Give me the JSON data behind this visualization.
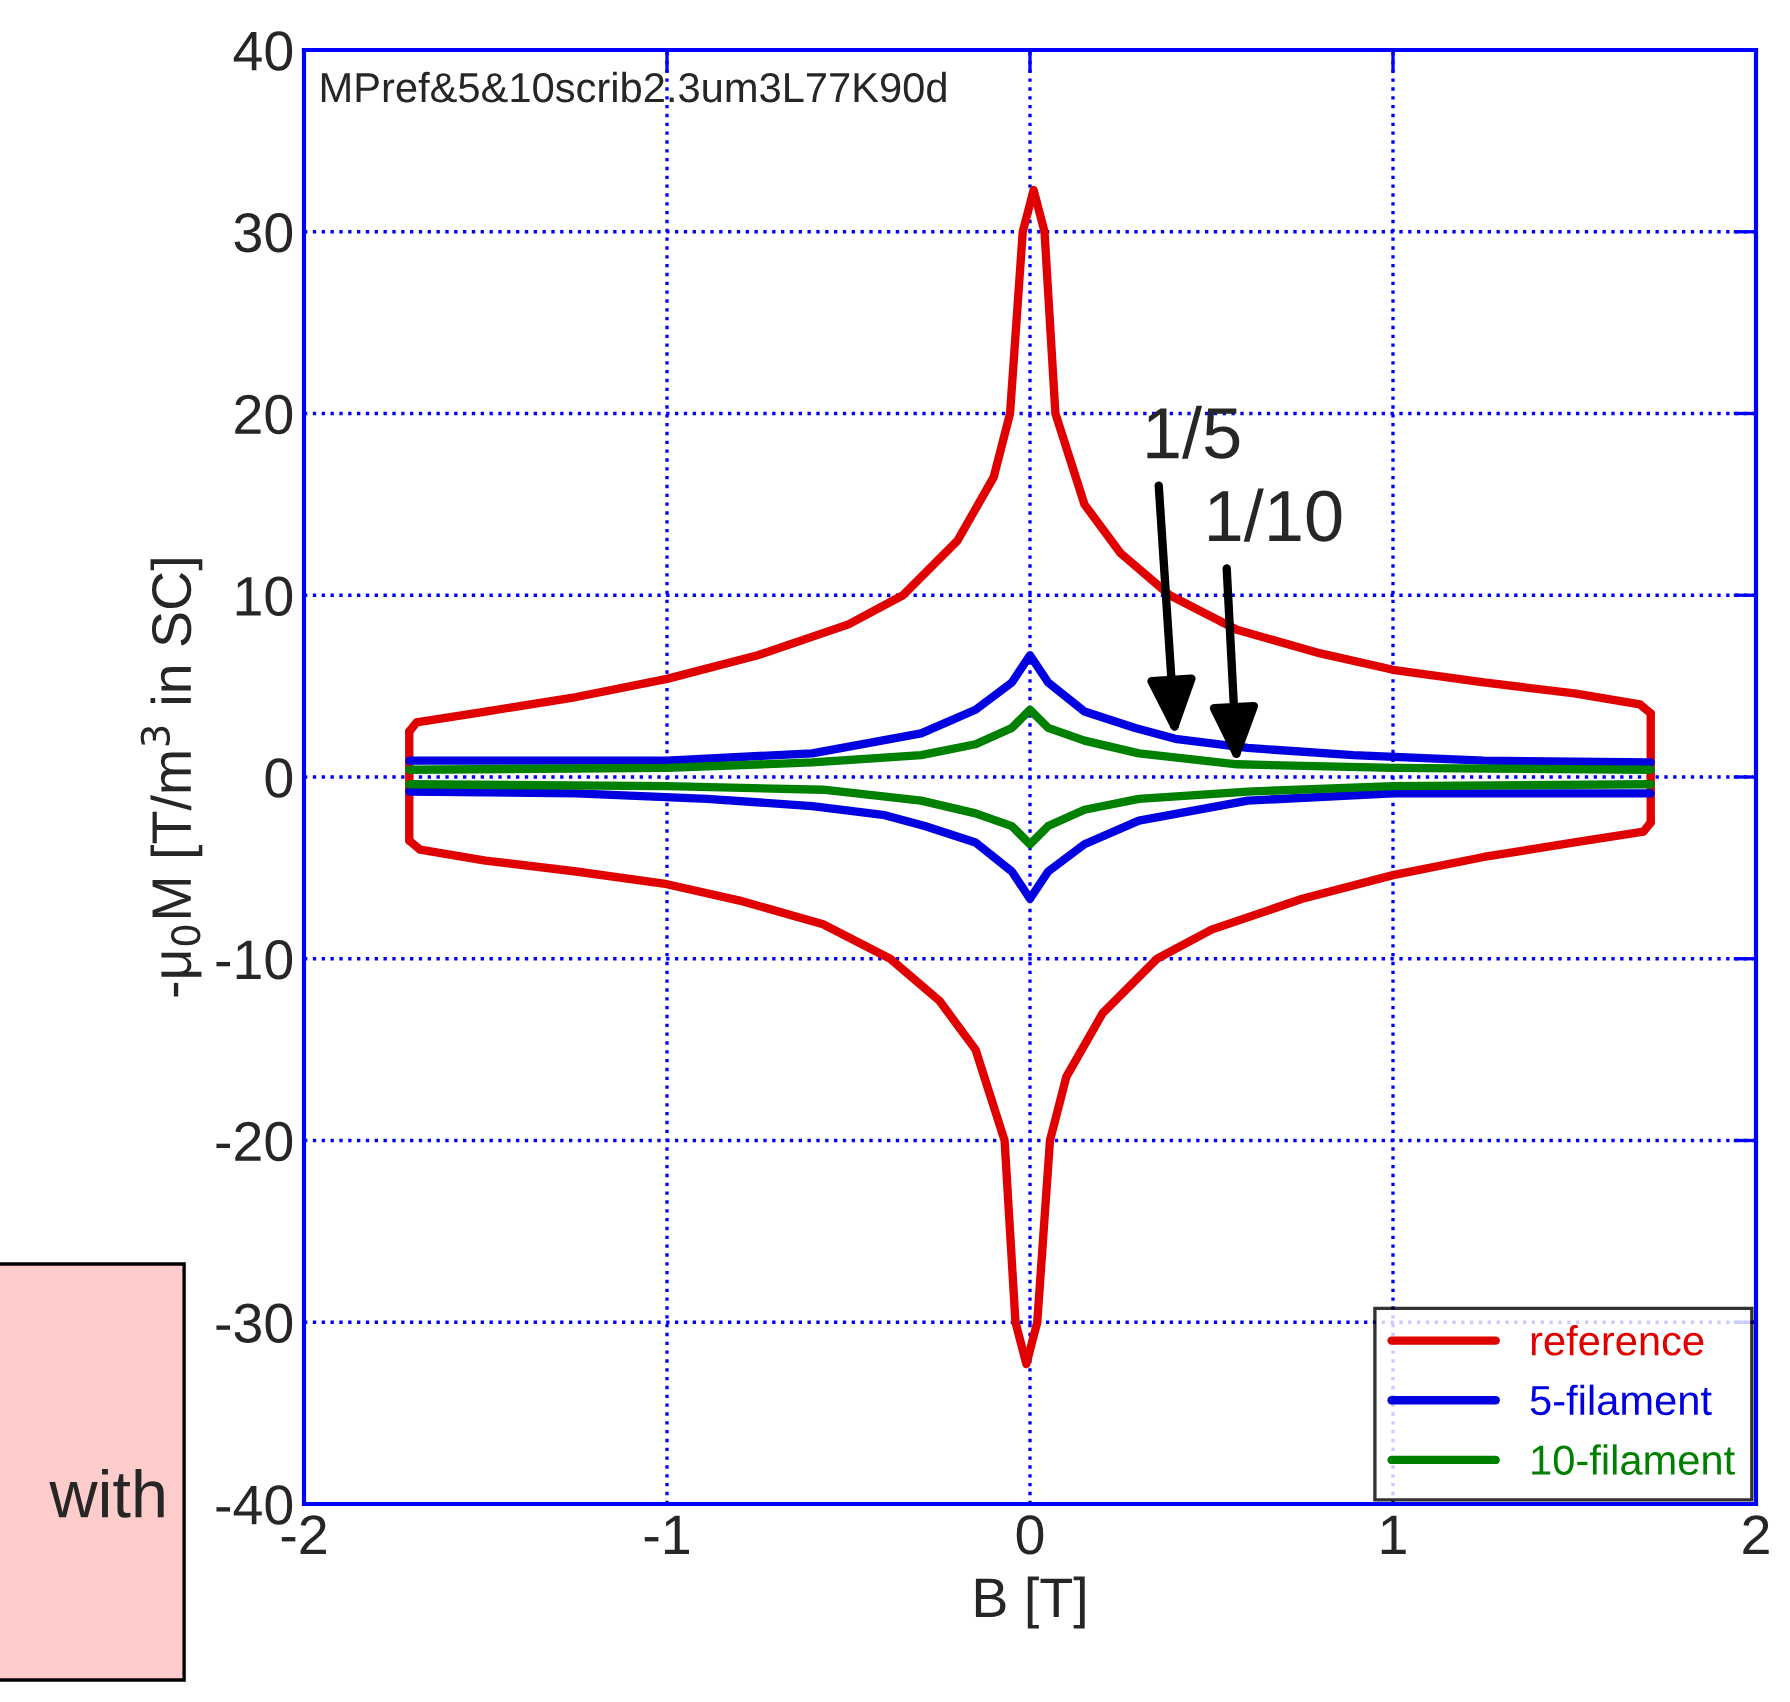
{
  "chart_data": {
    "type": "line",
    "title": "MPref&5&10scrib2.3um3L77K90d",
    "xlabel": "B [T]",
    "ylabel": "-μ$_{0}$M [T/m$^{3}$ in SC]",
    "xlim": [
      -2,
      2
    ],
    "xticks": [
      -2,
      -1,
      0,
      1,
      2
    ],
    "ylim": [
      -40,
      40
    ],
    "yticks": [
      -40,
      -30,
      -20,
      -10,
      0,
      10,
      20,
      30,
      40
    ],
    "grid": true,
    "legend": "bottom right",
    "series": [
      {
        "name": "reference",
        "color": "#e00000",
        "x": [
          -1.71,
          -1.69,
          -1.5,
          -1.25,
          -1,
          -0.75,
          -0.5,
          -0.35,
          -0.2,
          -0.1,
          -0.055,
          -0.02,
          0.01,
          0.04,
          0.07,
          0.15,
          0.25,
          0.385,
          0.57,
          0.8,
          1,
          1.25,
          1.5,
          1.68,
          1.71
        ],
        "values": [
          2.5,
          3.0,
          3.6,
          4.4,
          5.4,
          6.7,
          8.4,
          10,
          13,
          16.5,
          20,
          30,
          32.3,
          30,
          20,
          15,
          12.3,
          10,
          8.1,
          6.8,
          5.9,
          5.2,
          4.6,
          4.0,
          3.5
        ]
      },
      {
        "color": "#e00000",
        "x": [
          -1.71,
          -1.68,
          -1.5,
          -1.25,
          -1,
          -0.8,
          -0.57,
          -0.385,
          -0.25,
          -0.15,
          -0.07,
          -0.04,
          -0.01,
          0.02,
          0.055,
          0.1,
          0.2,
          0.35,
          0.5,
          0.75,
          1,
          1.25,
          1.5,
          1.69,
          1.71
        ],
        "values": [
          -3.5,
          -4.0,
          -4.6,
          -5.2,
          -5.9,
          -6.8,
          -8.1,
          -10,
          -12.3,
          -15,
          -20,
          -30,
          -32.3,
          -30,
          -20,
          -16.5,
          -13,
          -10,
          -8.4,
          -6.7,
          -5.4,
          -4.4,
          -3.6,
          -3.0,
          -2.5
        ]
      },
      {
        "color": "#e00000",
        "x": [
          -1.71,
          -1.71
        ],
        "values": [
          2.5,
          -3.5
        ]
      },
      {
        "color": "#e00000",
        "x": [
          1.71,
          1.71
        ],
        "values": [
          3.5,
          -2.5
        ]
      },
      {
        "name": "5-filament",
        "color": "#0000e0",
        "x": [
          -1.71,
          -1,
          -0.6,
          -0.3,
          -0.15,
          -0.05,
          0,
          0.05,
          0.15,
          0.29,
          0.4,
          0.6,
          0.89,
          1.25,
          1.71
        ],
        "values": [
          0.9,
          0.9,
          1.3,
          2.4,
          3.7,
          5.2,
          6.7,
          5.2,
          3.6,
          2.7,
          2.1,
          1.6,
          1.2,
          0.9,
          0.8
        ]
      },
      {
        "color": "#0000e0",
        "x": [
          -1.71,
          -1.25,
          -0.89,
          -0.6,
          -0.4,
          -0.29,
          -0.15,
          -0.05,
          0,
          0.05,
          0.15,
          0.3,
          0.6,
          1,
          1.71
        ],
        "values": [
          -0.8,
          -0.9,
          -1.2,
          -1.6,
          -2.1,
          -2.7,
          -3.6,
          -5.2,
          -6.7,
          -5.2,
          -3.7,
          -2.4,
          -1.3,
          -0.9,
          -0.9
        ]
      },
      {
        "name": "10-filament",
        "color": "#008000",
        "x": [
          -1.71,
          -1,
          -0.6,
          -0.3,
          -0.15,
          -0.05,
          0,
          0.05,
          0.15,
          0.3,
          0.57,
          1,
          1.71
        ],
        "values": [
          0.4,
          0.5,
          0.8,
          1.2,
          1.8,
          2.7,
          3.7,
          2.7,
          2.0,
          1.3,
          0.7,
          0.5,
          0.4
        ]
      },
      {
        "color": "#008000",
        "x": [
          -1.71,
          -1,
          -0.57,
          -0.3,
          -0.15,
          -0.05,
          0,
          0.05,
          0.15,
          0.3,
          0.6,
          1,
          1.71
        ],
        "values": [
          -0.4,
          -0.5,
          -0.7,
          -1.3,
          -2.0,
          -2.7,
          -3.7,
          -2.7,
          -1.8,
          -1.2,
          -0.8,
          -0.5,
          -0.4
        ]
      }
    ],
    "annotations": [
      {
        "text": "1/5",
        "x": 0.4,
        "y": 2.2
      },
      {
        "text": "1/10",
        "x": 0.57,
        "y": 0.7
      },
      "with"
    ]
  }
}
